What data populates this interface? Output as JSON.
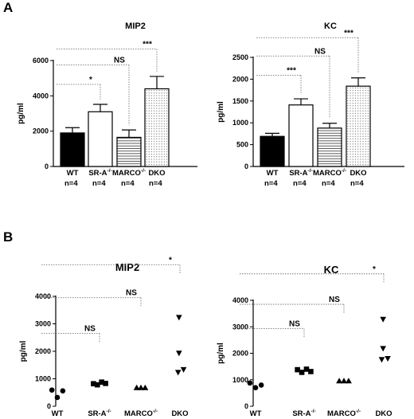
{
  "panels": [
    {
      "letter": "A"
    },
    {
      "letter": "B"
    }
  ],
  "pattern_names": [
    "solid",
    "white",
    "hstripe",
    "dots"
  ],
  "chart_data": [
    {
      "type": "bar",
      "title": "MIP2",
      "ylabel": "pg/ml",
      "ylim": [
        0,
        6000
      ],
      "yticks": [
        0,
        2000,
        4000,
        6000
      ],
      "categories": [
        {
          "base": "WT",
          "sup": "",
          "n": "n=4"
        },
        {
          "base": "SR-A",
          "sup": "-/-",
          "n": "n=4"
        },
        {
          "base": "MARCO",
          "sup": "-/-",
          "n": "n=4"
        },
        {
          "base": "DKO",
          "sup": "",
          "n": "n=4"
        }
      ],
      "values": [
        1900,
        3100,
        1650,
        4400
      ],
      "errors": [
        300,
        420,
        420,
        700
      ],
      "comparisons": [
        {
          "from": 0,
          "to": 1,
          "label": "*",
          "level": 4650
        },
        {
          "from": 0,
          "to": 2,
          "label": "NS",
          "level": 5750
        },
        {
          "from": 0,
          "to": 3,
          "label": "***",
          "level": 6650
        }
      ]
    },
    {
      "type": "bar",
      "title": "KC",
      "ylabel": "pg/ml",
      "ylim": [
        0,
        2500
      ],
      "yticks": [
        0,
        500,
        1000,
        1500,
        2000,
        2500
      ],
      "categories": [
        {
          "base": "WT",
          "sup": "",
          "n": "n=4"
        },
        {
          "base": "SR-A",
          "sup": "-/-",
          "n": "n=4"
        },
        {
          "base": "MARCO",
          "sup": "-/-",
          "n": "n=4"
        },
        {
          "base": "DKO",
          "sup": "",
          "n": "n=4"
        }
      ],
      "values": [
        690,
        1410,
        880,
        1840
      ],
      "errors": [
        70,
        140,
        110,
        190
      ],
      "comparisons": [
        {
          "from": 0,
          "to": 1,
          "label": "***",
          "level": 2090
        },
        {
          "from": 0,
          "to": 2,
          "label": "NS",
          "level": 2530
        },
        {
          "from": 0,
          "to": 3,
          "label": "***",
          "level": 2950
        }
      ]
    },
    {
      "type": "scatter",
      "title": "MIP2",
      "ylabel": "pg/ml",
      "ylim": [
        0,
        4000
      ],
      "yticks": [
        0,
        1000,
        2000,
        3000,
        4000
      ],
      "categories": [
        {
          "base": "WT",
          "sup": ""
        },
        {
          "base": "SR-A",
          "sup": "-/-"
        },
        {
          "base": "MARCO",
          "sup": "-/-"
        },
        {
          "base": "DKO",
          "sup": ""
        }
      ],
      "markers": [
        "circle",
        "square",
        "triangle",
        "triangle-down"
      ],
      "series": [
        {
          "points": [
            [
              -0.18,
              590
            ],
            [
              0.0,
              320
            ],
            [
              0.18,
              560
            ]
          ]
        },
        {
          "points": [
            [
              -0.2,
              820
            ],
            [
              -0.07,
              780
            ],
            [
              0.07,
              880
            ],
            [
              0.2,
              830
            ]
          ]
        },
        {
          "points": [
            [
              -0.14,
              680
            ],
            [
              0.0,
              680
            ],
            [
              0.14,
              680
            ]
          ]
        },
        {
          "points": [
            [
              -0.03,
              3230
            ],
            [
              -0.03,
              1930
            ],
            [
              -0.06,
              1230
            ],
            [
              0.12,
              1330
            ]
          ]
        }
      ],
      "comparisons": [
        {
          "from": 0,
          "to": 1,
          "label": "NS",
          "level": 2650
        },
        {
          "from": 0,
          "to": 2,
          "label": "NS",
          "level": 3950
        },
        {
          "from": 0,
          "to": 3,
          "label": "*",
          "level": 5150
        }
      ]
    },
    {
      "type": "scatter",
      "title": "KC",
      "ylabel": "pg/ml",
      "ylim": [
        0,
        4000
      ],
      "yticks": [
        0,
        1000,
        2000,
        3000,
        4000
      ],
      "categories": [
        {
          "base": "WT",
          "sup": ""
        },
        {
          "base": "SR-A",
          "sup": "-/-"
        },
        {
          "base": "MARCO",
          "sup": "-/-"
        },
        {
          "base": "DKO",
          "sup": ""
        }
      ],
      "markers": [
        "circle",
        "square",
        "triangle",
        "triangle-down"
      ],
      "series": [
        {
          "points": [
            [
              -0.17,
              880
            ],
            [
              0.0,
              700
            ],
            [
              0.17,
              800
            ]
          ]
        },
        {
          "points": [
            [
              -0.2,
              1380
            ],
            [
              -0.07,
              1280
            ],
            [
              0.07,
              1400
            ],
            [
              0.2,
              1310
            ]
          ]
        },
        {
          "points": [
            [
              -0.14,
              960
            ],
            [
              0.0,
              960
            ],
            [
              0.14,
              960
            ]
          ]
        },
        {
          "points": [
            [
              -0.02,
              3280
            ],
            [
              -0.02,
              2180
            ],
            [
              -0.06,
              1760
            ],
            [
              0.12,
              1800
            ]
          ]
        }
      ],
      "comparisons": [
        {
          "from": 0,
          "to": 1,
          "label": "NS",
          "level": 2930
        },
        {
          "from": 0,
          "to": 2,
          "label": "NS",
          "level": 3850
        },
        {
          "from": 0,
          "to": 3,
          "label": "*",
          "level": 5000
        }
      ]
    }
  ]
}
